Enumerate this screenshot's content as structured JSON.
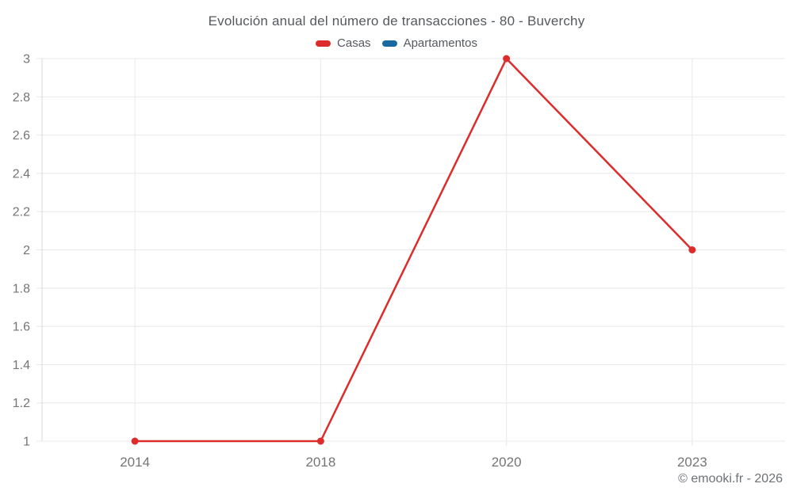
{
  "header": {
    "title": "Evolución anual del número de transacciones - 80 - Buverchy"
  },
  "legend": {
    "items": [
      {
        "label": "Casas",
        "color": "#dc2c2c"
      },
      {
        "label": "Apartamentos",
        "color": "#17699e"
      }
    ]
  },
  "footer": {
    "credit": "© emooki.fr - 2026"
  },
  "colors": {
    "casas": "#dc2c2c",
    "apartamentos": "#17699e",
    "gridline": "#e8e8e8",
    "axis_line": "#d9d9d9",
    "tick_label": "#757575"
  },
  "chart_data": {
    "type": "line",
    "title": "Evolución anual del número de transacciones - 80 - Buverchy",
    "categories": [
      "2014",
      "2018",
      "2020",
      "2023"
    ],
    "series": [
      {
        "name": "Casas",
        "color": "#dc2c2c",
        "values": [
          1,
          1,
          3,
          2
        ]
      },
      {
        "name": "Apartamentos",
        "color": "#17699e",
        "values": []
      }
    ],
    "xlabel": "",
    "ylabel": "",
    "ylim": [
      1,
      3
    ],
    "ytick_step": 0.2,
    "ytick_labels": [
      "1",
      "1.2",
      "1.4",
      "1.6",
      "1.8",
      "2",
      "2.2",
      "2.4",
      "2.6",
      "2.8",
      "3"
    ],
    "grid": true,
    "legend_position": "top"
  }
}
